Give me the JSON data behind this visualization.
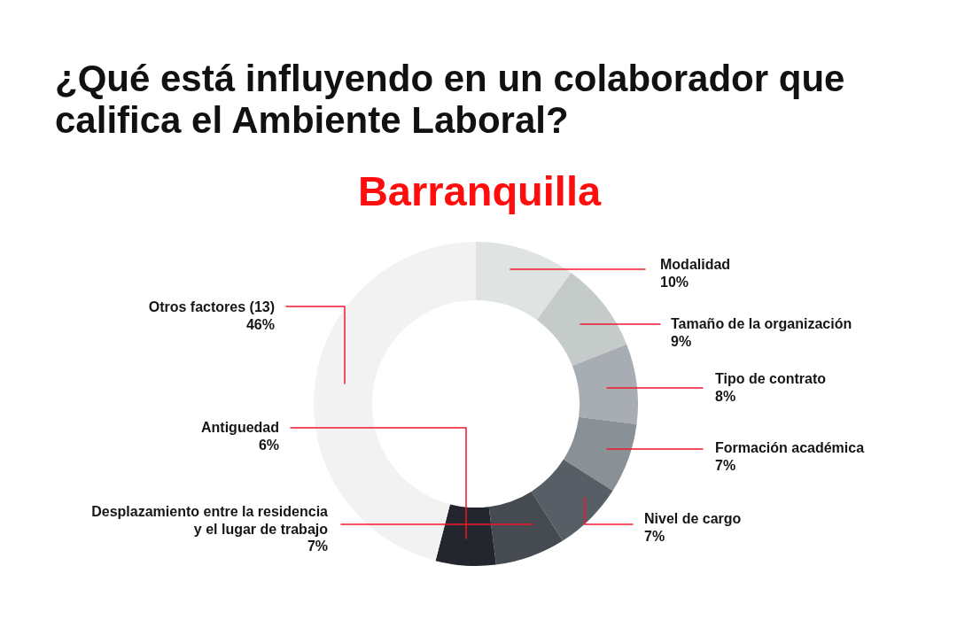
{
  "chart_data": {
    "type": "donut",
    "title": "¿Qué está influyendo en un colaborador que califica el Ambiente Laboral?",
    "subtitle": "Barranquilla",
    "categories": [
      "Modalidad",
      "Tamaño de la organización",
      "Tipo de contrato",
      "Formación académica",
      "Nivel de cargo",
      "Desplazamiento entre la residencia y el lugar de trabajo",
      "Antiguedad",
      "Otros factores (13)"
    ],
    "values": [
      10,
      9,
      8,
      7,
      7,
      7,
      6,
      46
    ],
    "value_labels": [
      "10%",
      "9%",
      "8%",
      "7%",
      "7%",
      "7%",
      "6%",
      "46%"
    ],
    "colors": [
      "#dfe3e2",
      "#c5cbc9",
      "#a7adb2",
      "#899196",
      "#575e65",
      "#464b52",
      "#23262c",
      "#f2f2f2"
    ]
  }
}
